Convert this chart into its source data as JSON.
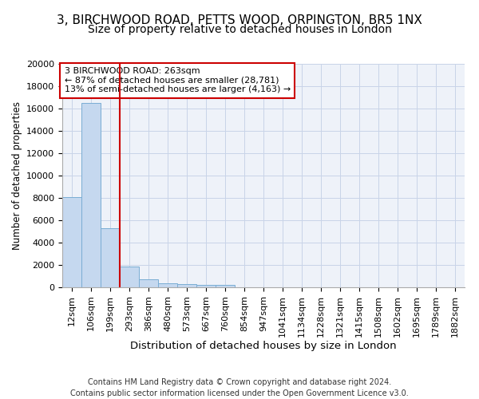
{
  "title_line1": "3, BIRCHWOOD ROAD, PETTS WOOD, ORPINGTON, BR5 1NX",
  "title_line2": "Size of property relative to detached houses in London",
  "xlabel": "Distribution of detached houses by size in London",
  "ylabel": "Number of detached properties",
  "footer_line1": "Contains HM Land Registry data © Crown copyright and database right 2024.",
  "footer_line2": "Contains public sector information licensed under the Open Government Licence v3.0.",
  "bin_labels": [
    "12sqm",
    "106sqm",
    "199sqm",
    "293sqm",
    "386sqm",
    "480sqm",
    "573sqm",
    "667sqm",
    "760sqm",
    "854sqm",
    "947sqm",
    "1041sqm",
    "1134sqm",
    "1228sqm",
    "1321sqm",
    "1415sqm",
    "1508sqm",
    "1602sqm",
    "1695sqm",
    "1789sqm",
    "1882sqm"
  ],
  "bar_heights": [
    8100,
    16500,
    5300,
    1850,
    700,
    350,
    270,
    210,
    190,
    0,
    0,
    0,
    0,
    0,
    0,
    0,
    0,
    0,
    0,
    0,
    0
  ],
  "bar_color": "#c5d8ef",
  "bar_edge_color": "#7aadd4",
  "grid_color": "#c8d4e8",
  "background_color": "#eef2f9",
  "red_line_x": 2.5,
  "annotation_text": "3 BIRCHWOOD ROAD: 263sqm\n← 87% of detached houses are smaller (28,781)\n13% of semi-detached houses are larger (4,163) →",
  "annotation_box_color": "#ffffff",
  "annotation_border_color": "#cc0000",
  "ylim": [
    0,
    20000
  ],
  "yticks": [
    0,
    2000,
    4000,
    6000,
    8000,
    10000,
    12000,
    14000,
    16000,
    18000,
    20000
  ],
  "title_fontsize": 11,
  "subtitle_fontsize": 10,
  "ylabel_fontsize": 8.5,
  "xlabel_fontsize": 9.5,
  "tick_fontsize": 8,
  "annot_fontsize": 8,
  "footer_fontsize": 7
}
